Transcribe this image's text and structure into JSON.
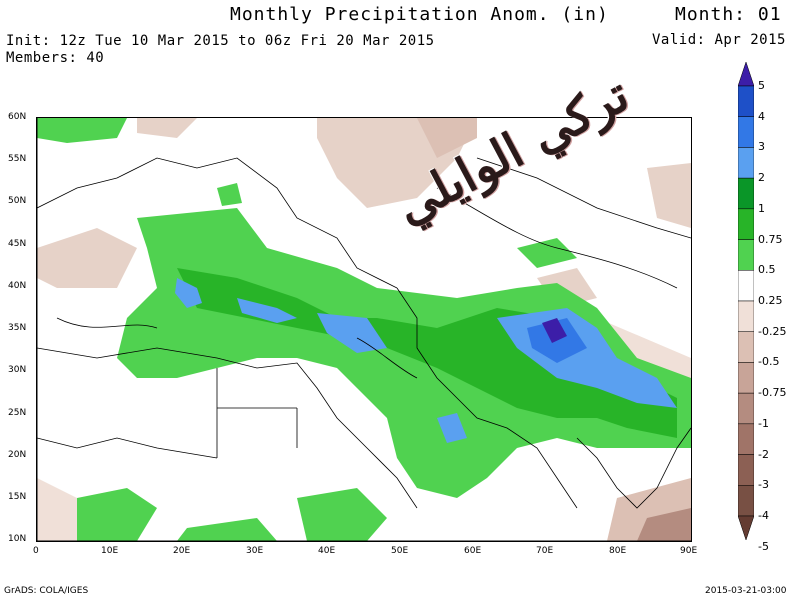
{
  "header": {
    "title": "Monthly Precipitation Anom. (in)",
    "month": "Month: 01",
    "init": "Init: 12z Tue 10 Mar 2015 to 06z Fri 20 Mar 2015",
    "members": "Members: 40",
    "valid": "Valid: Apr 2015"
  },
  "axes": {
    "lat_labels": [
      "60N",
      "55N",
      "50N",
      "45N",
      "40N",
      "35N",
      "30N",
      "25N",
      "20N",
      "15N",
      "10N"
    ],
    "lon_labels": [
      "0",
      "10E",
      "20E",
      "30E",
      "40E",
      "50E",
      "60E",
      "70E",
      "80E",
      "90E"
    ]
  },
  "legend": {
    "labels": [
      "5",
      "4",
      "3",
      "2",
      "1",
      "0.75",
      "0.5",
      "0.25",
      "-0.25",
      "-0.5",
      "-0.75",
      "-1",
      "-2",
      "-3",
      "-4",
      "-5"
    ],
    "colors": [
      "#3c1ea8",
      "#1e50c8",
      "#3278e6",
      "#5aa0f0",
      "#0a9628",
      "#28b428",
      "#50d250",
      "#ffffff",
      "#f0e0d8",
      "#dcc0b4",
      "#c8a498",
      "#b48c80",
      "#a07468",
      "#8c6054",
      "#785044",
      "#643c32"
    ]
  },
  "watermark": {
    "text": "تركي الوايلي"
  },
  "footer": {
    "left": "GrADS: COLA/IGES",
    "right": "2015-03-21-03:00"
  },
  "map": {
    "region": "0-90E, 10N-60N",
    "colors": {
      "green": "#28b428",
      "light_green": "#50d250",
      "blue": "#3278e6",
      "light_blue": "#5aa0f0",
      "purple": "#3c1ea8",
      "tan": "#e6d2c8",
      "brown": "#b48c80"
    }
  }
}
